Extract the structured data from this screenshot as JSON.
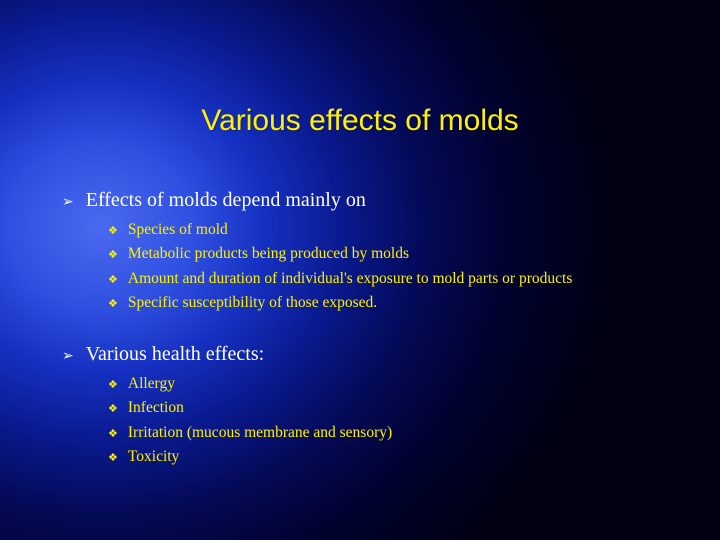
{
  "slide": {
    "title": "Various effects of molds",
    "title_color": "#fff200",
    "title_fontsize": 30,
    "background": {
      "type": "radial-gradient",
      "center": "14% 42%",
      "stops": [
        "#4a6af0",
        "#2f4fe0",
        "#1530c0",
        "#0a1a90",
        "#040a58",
        "#010230",
        "#000010"
      ]
    },
    "bullet_arrow": "➢",
    "bullet_clover": "❖",
    "section_text_color": "#ffffff",
    "item_text_color": "#fff200",
    "sections": [
      {
        "heading": "Effects of molds depend mainly on",
        "items": [
          "Species of mold",
          "Metabolic products being produced by molds",
          "Amount and duration of individual's exposure to mold parts or products",
          "Specific susceptibility of those exposed."
        ]
      },
      {
        "heading": "Various health effects:",
        "items": [
          "Allergy",
          "Infection",
          "Irritation (mucous membrane and sensory)",
          "Toxicity"
        ]
      }
    ]
  }
}
